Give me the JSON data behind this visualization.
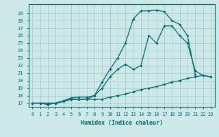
{
  "xlabel": "Humidex (Indice chaleur)",
  "bg_color": "#cce8e8",
  "grid_color": "#aacccc",
  "line_color": "#006666",
  "xlim": [
    -0.5,
    23.5
  ],
  "ylim": [
    16.5,
    30.2
  ],
  "xticks": [
    0,
    1,
    2,
    3,
    4,
    5,
    6,
    7,
    8,
    9,
    10,
    11,
    12,
    13,
    14,
    15,
    16,
    17,
    18,
    19,
    20,
    21,
    22,
    23
  ],
  "yticks": [
    17,
    18,
    19,
    20,
    21,
    22,
    23,
    24,
    25,
    26,
    27,
    28,
    29
  ],
  "line1_x": [
    0,
    1,
    2,
    3,
    4,
    5,
    6,
    7,
    8,
    9,
    10,
    11,
    12,
    13,
    14,
    15,
    16,
    17,
    18,
    19,
    20,
    21
  ],
  "line1_y": [
    17,
    17,
    16.8,
    17,
    17.3,
    17.5,
    17.5,
    17.5,
    18,
    19.8,
    21.5,
    23,
    25,
    28.2,
    29.3,
    29.3,
    29.4,
    29.2,
    28,
    27.5,
    26,
    20.8
  ],
  "line2_x": [
    0,
    1,
    2,
    3,
    4,
    5,
    6,
    7,
    8,
    9,
    10,
    11,
    12,
    13,
    14,
    15,
    16,
    17,
    18,
    19,
    20,
    21,
    22,
    23
  ],
  "line2_y": [
    17,
    17,
    17,
    17,
    17.3,
    17.7,
    17.8,
    17.8,
    18.0,
    19.0,
    20.5,
    21.5,
    22.2,
    21.5,
    22,
    26,
    25,
    27.3,
    27.3,
    26,
    25,
    21.3,
    20.7,
    20.5
  ],
  "line3_x": [
    0,
    1,
    2,
    3,
    4,
    5,
    6,
    7,
    8,
    9,
    10,
    11,
    12,
    13,
    14,
    15,
    16,
    17,
    18,
    19,
    20,
    21,
    22,
    23
  ],
  "line3_y": [
    17,
    17,
    17,
    17,
    17.2,
    17.5,
    17.5,
    17.5,
    17.5,
    17.5,
    17.8,
    18,
    18.2,
    18.5,
    18.8,
    19,
    19.2,
    19.5,
    19.8,
    20,
    20.3,
    20.5,
    20.7,
    20.5
  ]
}
